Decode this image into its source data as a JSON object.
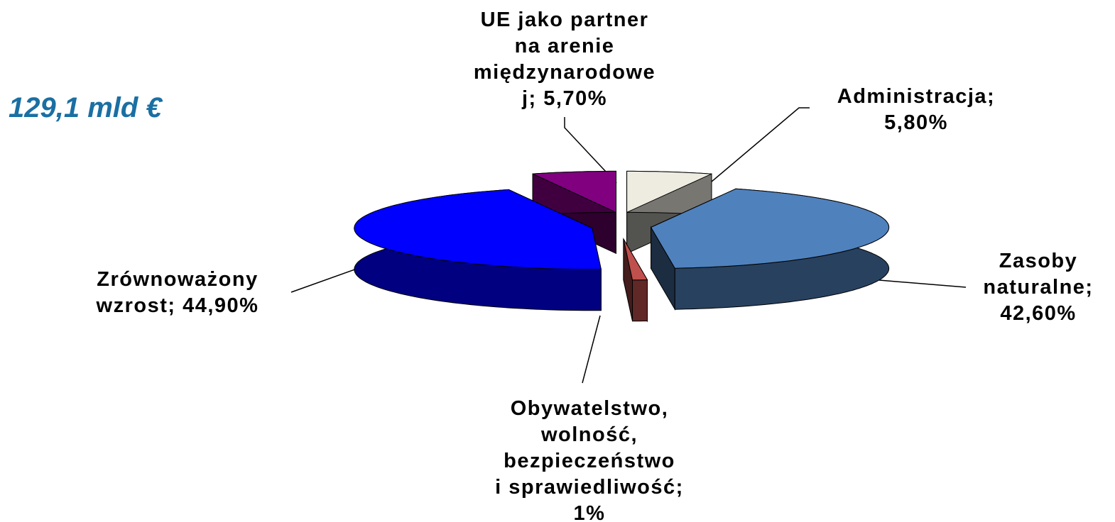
{
  "chart_data": {
    "type": "pie3d",
    "title": "129,1 mld €",
    "categories": [
      "Administracja",
      "Zasoby naturalne",
      "Obywatelstwo, wolność, bezpieczeństwo i sprawiedliwość",
      "Zrównoważony wzrost",
      "UE jako partner na arenie międzynarodowej"
    ],
    "values": [
      5.8,
      42.6,
      1,
      44.9,
      5.7
    ],
    "value_labels": [
      "Administracja;\n5,80%",
      "Zasoby\nnaturalne;\n42,60%",
      "Obywatelstwo,\nwolność,\nbezpieczeństwo\ni sprawiedliwość;\n1%",
      "Zrównoważony\nwzrost; 44,90%",
      "UE jako partner\nna arenie\nmiędzynarodowe\nj; 5,70%"
    ],
    "colors": [
      "#eeece1",
      "#4f81bd",
      "#c0504d",
      "#0000ff",
      "#800080"
    ]
  }
}
